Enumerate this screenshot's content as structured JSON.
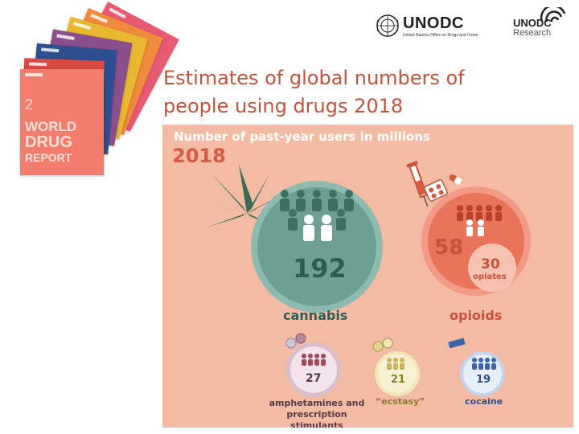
{
  "header": {
    "org_logo": {
      "name": "UNODC",
      "subtitle": "United Nations Office on Drugs and Crime"
    },
    "research_logo": {
      "top": "UNODC",
      "bottom": "Research"
    }
  },
  "report_covers": {
    "front_cover_title": [
      "WORLD",
      "DRUG",
      "REPORT"
    ],
    "front_cover_number": "2"
  },
  "slide": {
    "title": "Estimates of global numbers of people using drugs 2018"
  },
  "infographic": {
    "heading": "Number of past-year users in millions",
    "year": "2018",
    "items": [
      {
        "label": "cannabis",
        "value": "192",
        "color": "#6d9f94"
      },
      {
        "label": "opioids",
        "value": "58",
        "sub_value": "30",
        "sub_label": "opiates",
        "color": "#e8745a"
      },
      {
        "label": "amphetamines and prescription stimulants",
        "value": "27",
        "color": "#b58a9e"
      },
      {
        "label": "“ecstasy”",
        "value": "21",
        "color": "#e6d28c"
      },
      {
        "label": "cocaine",
        "value": "19",
        "color": "#8fb0d6"
      }
    ],
    "colors": {
      "panel_bg": "#f4bba4",
      "heading": "#ffffff",
      "year": "#d85a40",
      "cannabis_text": "#2f5d56",
      "opioids_text": "#c4533c",
      "amph_text": "#5a3a4a",
      "ecstasy_text": "#8c7a2c",
      "cocaine_text": "#2f4f86"
    }
  }
}
